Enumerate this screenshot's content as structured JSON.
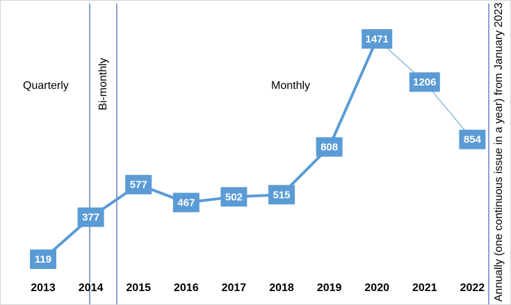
{
  "chart_data": {
    "type": "line",
    "title": "",
    "xlabel": "",
    "ylabel": "",
    "categories": [
      "2013",
      "2014",
      "2015",
      "2016",
      "2017",
      "2018",
      "2019",
      "2020",
      "2021",
      "2022"
    ],
    "series": [
      {
        "values": [
          119,
          377,
          577,
          467,
          502,
          515,
          808,
          1471,
          1206,
          854
        ]
      }
    ],
    "data_labels": [
      "119",
      "377",
      "577",
      "467",
      "502",
      "515",
      "808",
      "1471",
      "1206",
      "854"
    ],
    "ylim": [
      0,
      1600
    ],
    "grid": false,
    "period_annotations": {
      "quarterly": "Quarterly",
      "bimonthly": "Bi-monthly",
      "monthly": "Monthly",
      "annually": "Annually (one continuous issue in a year) from January 2023"
    },
    "colors": {
      "line": "#5b9bd5",
      "label_box": "#5b9bd5",
      "divider": "#4a6fb5"
    }
  }
}
